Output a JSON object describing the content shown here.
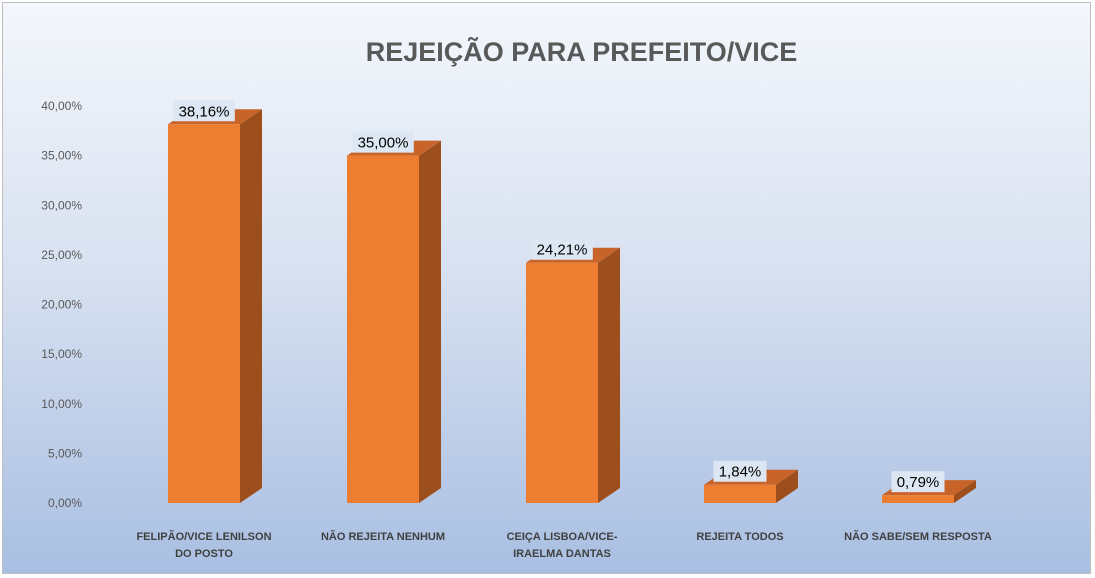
{
  "chart_data": {
    "type": "bar",
    "title": "REJEIÇÃO PARA PREFEITO/VICE",
    "categories": [
      [
        "FELIPÃO/VICE LENILSON",
        "DO POSTO"
      ],
      [
        "NÃO REJEITA NENHUM"
      ],
      [
        "CEIÇA LISBOA/VICE-",
        "IRAELMA DANTAS"
      ],
      [
        "REJEITA TODOS"
      ],
      [
        "NÃO SABE/SEM RESPOSTA"
      ]
    ],
    "values": [
      38.16,
      35.0,
      24.21,
      1.84,
      0.79
    ],
    "data_labels": [
      "38,16%",
      "35,00%",
      "24,21%",
      "1,84%",
      "0,79%"
    ],
    "yticks": [
      "0,00%",
      "5,00%",
      "10,00%",
      "15,00%",
      "20,00%",
      "25,00%",
      "30,00%",
      "35,00%",
      "40,00%"
    ],
    "ylim": [
      0,
      40
    ],
    "grid": false,
    "legend": "none",
    "bar_front_color": "#ed7d31",
    "bar_side_color": "#9c4f1d",
    "bar_top_color": "#c8642a",
    "label_box_color": "#dde7f4"
  }
}
